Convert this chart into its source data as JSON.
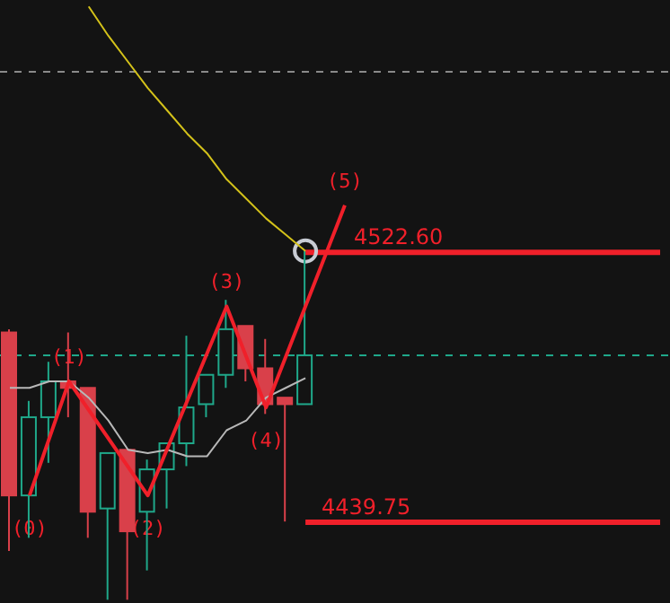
{
  "chart_data": {
    "type": "candlestick",
    "categories": [
      null,
      null,
      null,
      null,
      null,
      null,
      null,
      null,
      null,
      null,
      null,
      null,
      null,
      null,
      null,
      null,
      null,
      null,
      null,
      null,
      null,
      null,
      null,
      null,
      null,
      null,
      null,
      null,
      null,
      null,
      null,
      null,
      null,
      null
    ],
    "ohlc": [
      [
        4498,
        4499,
        4431,
        4448
      ],
      [
        4448,
        4477,
        4435,
        4472
      ],
      [
        4472,
        4489,
        4458,
        4483
      ],
      [
        4483,
        4498,
        4472,
        4481
      ],
      [
        4481,
        4481,
        4435,
        4443
      ],
      [
        4444,
        4461,
        4416,
        4461
      ],
      [
        4462,
        4462,
        4416,
        4437
      ],
      [
        4443,
        4459,
        4425,
        4456
      ],
      [
        4456,
        4464,
        4444,
        4464
      ],
      [
        4464,
        4497,
        4457,
        4475
      ],
      [
        4476,
        4485,
        4472,
        4485
      ],
      [
        4485,
        4508,
        4481,
        4499
      ],
      [
        4500,
        4500,
        4483,
        4487
      ],
      [
        4487,
        4496,
        4473,
        4476
      ],
      [
        4478,
        4478,
        4440,
        4476
      ],
      [
        4476,
        4523,
        4476,
        4491
      ],
      null,
      null,
      null,
      null,
      null,
      null,
      null,
      null,
      null,
      null,
      null,
      null,
      null,
      null,
      null,
      null,
      null,
      null
    ],
    "colors": [
      "#d9404a",
      "#1fa88a",
      "#1fa88a",
      "#d9404a",
      "#d9404a",
      "#1fa88a",
      "#d9404a",
      "#1fa88a",
      "#1fa88a",
      "#1fa88a",
      "#1fa88a",
      "#1fa88a",
      "#d9404a",
      "#d9404a",
      "#d9404a",
      "#1fa88a",
      null,
      null,
      null,
      null,
      null,
      null,
      null,
      null,
      null,
      null,
      null,
      null,
      null,
      null,
      null,
      null,
      null,
      null
    ],
    "series": [
      {
        "type": "line",
        "color": "#d4c21a",
        "values": [
          null,
          null,
          null,
          null,
          4598,
          4589,
          4581,
          4573,
          4566,
          4559,
          4553,
          4545,
          4539,
          4533,
          4528,
          4523,
          null,
          null,
          null,
          null,
          null,
          null,
          null,
          null,
          null,
          null,
          null,
          null,
          null,
          null,
          null,
          null,
          null,
          null
        ]
      },
      {
        "type": "line",
        "color": "#b8b8b8",
        "values": [
          4481,
          4481,
          4483,
          4483,
          4478,
          4471,
          4462,
          4461,
          4462,
          4460,
          4460,
          4468,
          4471,
          4478,
          4481,
          4484,
          null,
          null,
          null,
          null,
          null,
          null,
          null,
          null,
          null,
          null,
          null,
          null,
          null,
          null,
          null,
          null,
          null,
          null
        ]
      },
      {
        "type": "line",
        "color": "#f0202a",
        "values": [
          null,
          4448,
          null,
          4483,
          null,
          null,
          null,
          4448,
          null,
          null,
          null,
          4506,
          null,
          4475,
          null,
          null,
          null,
          4537,
          null,
          null,
          null,
          null,
          null,
          null,
          null,
          null,
          null,
          null,
          null,
          null,
          null,
          null,
          null,
          null
        ]
      }
    ],
    "annotations": [
      {
        "text": "(0)",
        "y": 4448
      },
      {
        "text": "(1)",
        "y": 4483
      },
      {
        "text": "(2)",
        "y": 4448
      },
      {
        "text": "(3)",
        "y": 4506
      },
      {
        "text": "(4)",
        "y": 4475
      },
      {
        "text": "(5)",
        "y": 4537
      }
    ],
    "ylim": [
      4415,
      4600
    ],
    "ref_lines": [
      {
        "axis": "y",
        "value": 4522.6,
        "label": "4522.60",
        "color": "#f0202a",
        "line_style": "solid"
      },
      {
        "axis": "y",
        "value": 4439.75,
        "label": "4439.75",
        "color": "#f0202a",
        "line_style": "solid"
      },
      {
        "axis": "y",
        "value": 4491,
        "color": "#1fa88a",
        "line_style": "dashed"
      },
      {
        "axis": "y",
        "value": 4578,
        "color": "#8a8a8a",
        "line_style": "dashed"
      }
    ],
    "tick_labels": false
  }
}
